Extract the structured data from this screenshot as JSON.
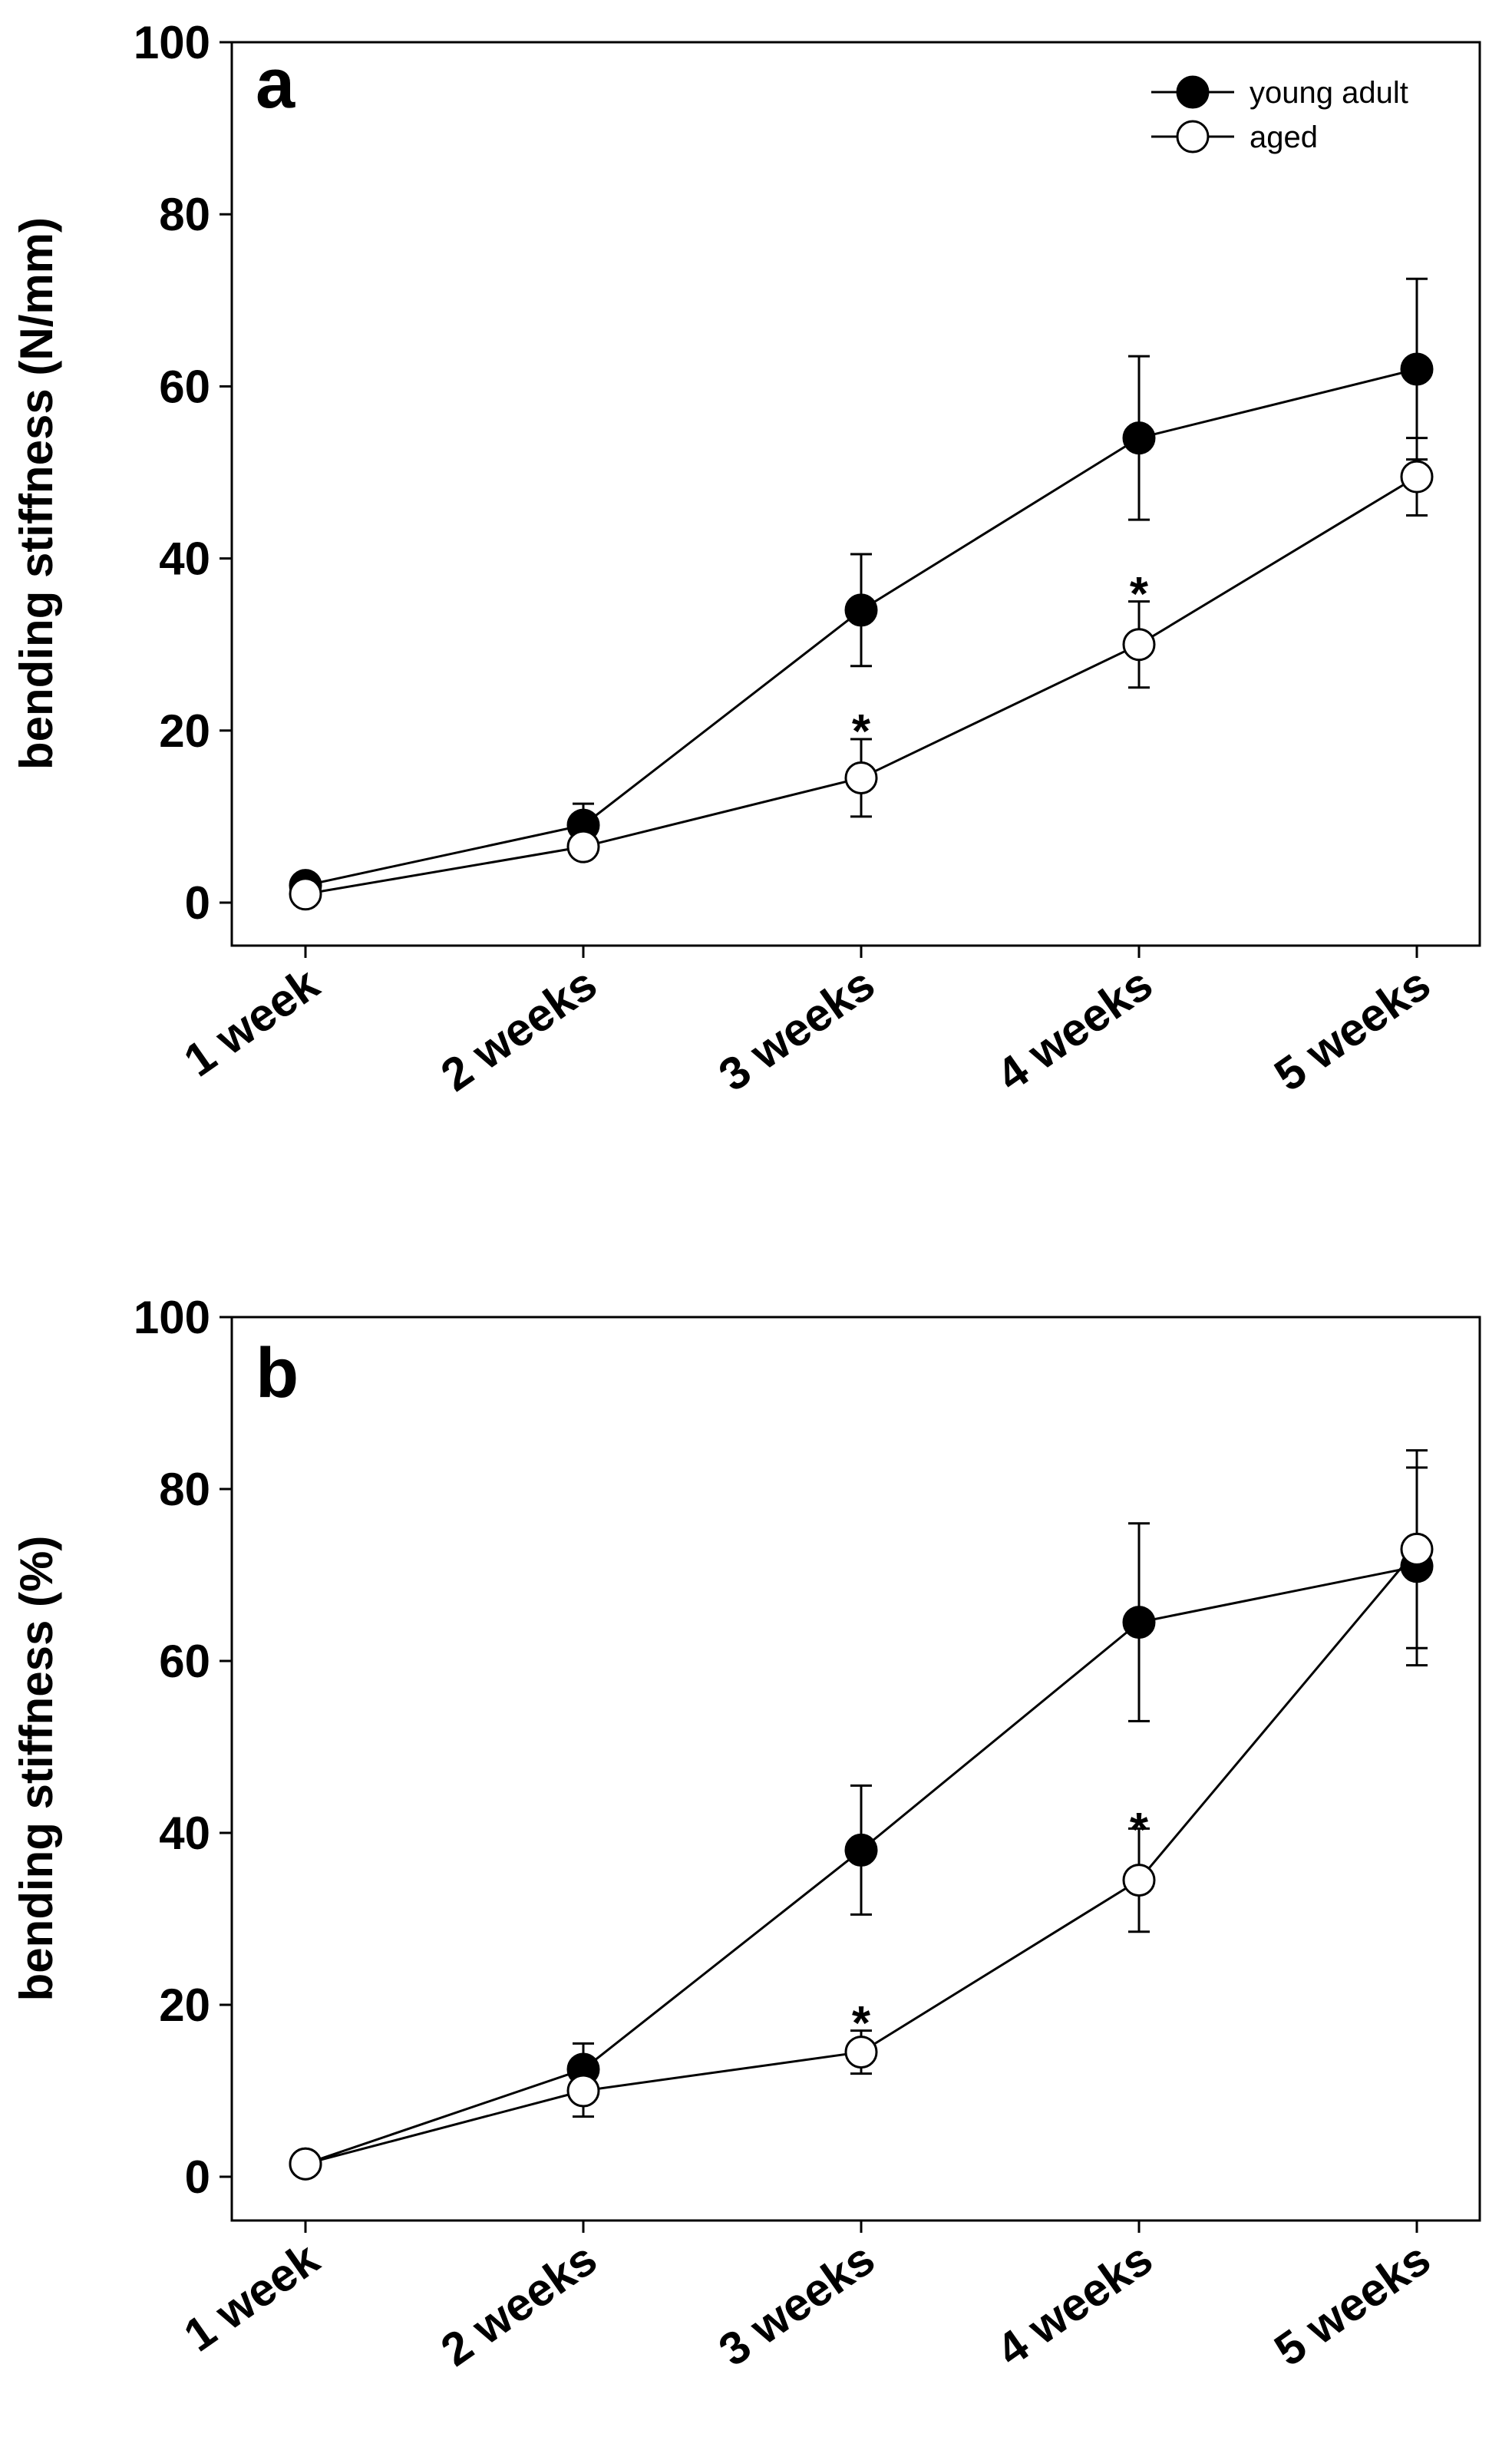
{
  "chart_data": [
    {
      "type": "line",
      "panel_label": "a",
      "title": "",
      "xlabel": "",
      "ylabel": "bending stiffness (N/mm)",
      "categories": [
        "1 week",
        "2 weeks",
        "3 weeks",
        "4 weeks",
        "5 weeks"
      ],
      "ylim": [
        -5,
        100
      ],
      "yticks": [
        0,
        20,
        40,
        60,
        80,
        100
      ],
      "ytick_labels": [
        "0",
        "20",
        "40",
        "60",
        "80",
        "100"
      ],
      "grid": false,
      "legend_position": "top-right",
      "series": [
        {
          "name": "young adult",
          "marker": "filled-circle",
          "values": [
            2,
            9,
            34,
            54,
            62
          ],
          "error": [
            0.5,
            2.5,
            6.5,
            9.5,
            10.5
          ]
        },
        {
          "name": "aged",
          "marker": "open-circle",
          "values": [
            1,
            6.5,
            14.5,
            30,
            49.5
          ],
          "error": [
            0.5,
            1,
            4.5,
            5,
            4.5
          ]
        }
      ],
      "annotations": [
        {
          "text": "*",
          "category": "3 weeks",
          "y": 20.5
        },
        {
          "text": "*",
          "category": "4 weeks",
          "y": 36.5
        }
      ]
    },
    {
      "type": "line",
      "panel_label": "b",
      "title": "",
      "xlabel": "",
      "ylabel": "bending stiffness (%)",
      "categories": [
        "1 week",
        "2 weeks",
        "3 weeks",
        "4 weeks",
        "5 weeks"
      ],
      "ylim": [
        -5,
        100
      ],
      "yticks": [
        0,
        20,
        40,
        60,
        80,
        100
      ],
      "ytick_labels": [
        "0",
        "20",
        "40",
        "60",
        "80",
        "100"
      ],
      "grid": false,
      "legend_position": "none",
      "series": [
        {
          "name": "young adult",
          "marker": "filled-circle",
          "values": [
            1.5,
            12.5,
            38,
            64.5,
            71
          ],
          "error": [
            0.5,
            3,
            7.5,
            11.5,
            11.5
          ]
        },
        {
          "name": "aged",
          "marker": "open-circle",
          "values": [
            1.5,
            10,
            14.5,
            34.5,
            73
          ],
          "error": [
            0.5,
            3,
            2.5,
            6,
            11.5
          ]
        }
      ],
      "annotations": [
        {
          "text": "*",
          "category": "3 weeks",
          "y": 18.5
        },
        {
          "text": "*",
          "category": "4 weeks",
          "y": 41
        }
      ]
    }
  ]
}
